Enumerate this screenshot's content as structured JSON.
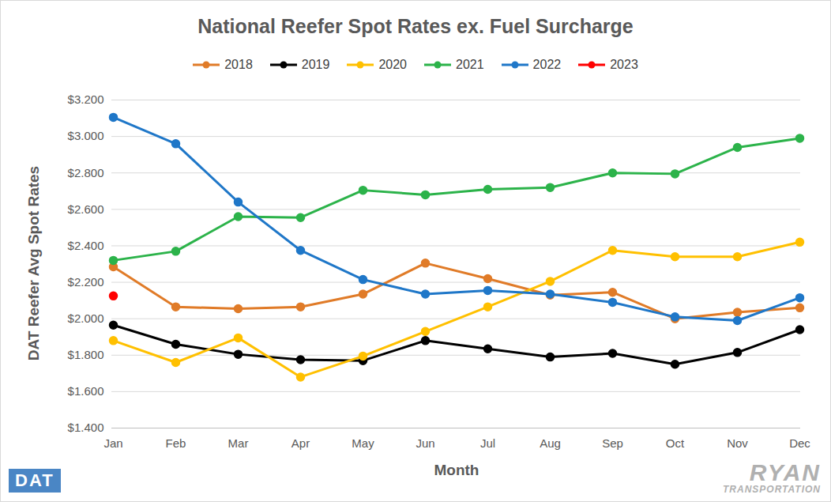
{
  "chart_data": {
    "type": "line",
    "title": "National Reefer Spot Rates ex. Fuel Surcharge",
    "x_label": "Month",
    "y_label": "DAT Reefer Avg Spot Rates",
    "logos": [
      "DAT",
      "RYAN",
      "TRANSPORTATION"
    ],
    "categories": [
      "Jan",
      "Feb",
      "Mar",
      "Apr",
      "May",
      "Jun",
      "Jul",
      "Aug",
      "Sep",
      "Oct",
      "Nov",
      "Dec"
    ],
    "series": [
      {
        "name": "2018",
        "color": "#e07b28",
        "values": [
          2.285,
          2.065,
          2.055,
          2.065,
          2.135,
          2.305,
          2.22,
          2.13,
          2.145,
          2.0,
          2.035,
          2.06
        ]
      },
      {
        "name": "2019",
        "color": "#000000",
        "values": [
          1.965,
          1.86,
          1.805,
          1.775,
          1.77,
          1.88,
          1.835,
          1.79,
          1.81,
          1.75,
          1.815,
          1.94
        ]
      },
      {
        "name": "2020",
        "color": "#ffc000",
        "values": [
          1.88,
          1.76,
          1.895,
          1.68,
          1.795,
          1.93,
          2.065,
          2.205,
          2.375,
          2.34,
          2.34,
          2.42
        ]
      },
      {
        "name": "2021",
        "color": "#2cb34a",
        "values": [
          2.32,
          2.37,
          2.56,
          2.555,
          2.705,
          2.68,
          2.71,
          2.72,
          2.8,
          2.795,
          2.94,
          2.99
        ]
      },
      {
        "name": "2022",
        "color": "#1f77c8",
        "values": [
          3.105,
          2.96,
          2.64,
          2.375,
          2.215,
          2.135,
          2.155,
          2.135,
          2.09,
          2.01,
          1.99,
          2.115
        ]
      },
      {
        "name": "2023",
        "color": "#ff0000",
        "values": [
          2.125,
          null,
          null,
          null,
          null,
          null,
          null,
          null,
          null,
          null,
          null,
          null
        ]
      }
    ],
    "ylim": [
      1.4,
      3.2
    ],
    "yticks": [
      {
        "value": 1.4,
        "label": "$1.400"
      },
      {
        "value": 1.6,
        "label": "$1.600"
      },
      {
        "value": 1.8,
        "label": "$1.800"
      },
      {
        "value": 2.0,
        "label": "$2.000"
      },
      {
        "value": 2.2,
        "label": "$2.200"
      },
      {
        "value": 2.4,
        "label": "$2.400"
      },
      {
        "value": 2.6,
        "label": "$2.600"
      },
      {
        "value": 2.8,
        "label": "$2.800"
      },
      {
        "value": 3.0,
        "label": "$3.000"
      },
      {
        "value": 3.2,
        "label": "$3.200"
      }
    ],
    "grid": true,
    "legend": "top",
    "marker": "circle"
  }
}
